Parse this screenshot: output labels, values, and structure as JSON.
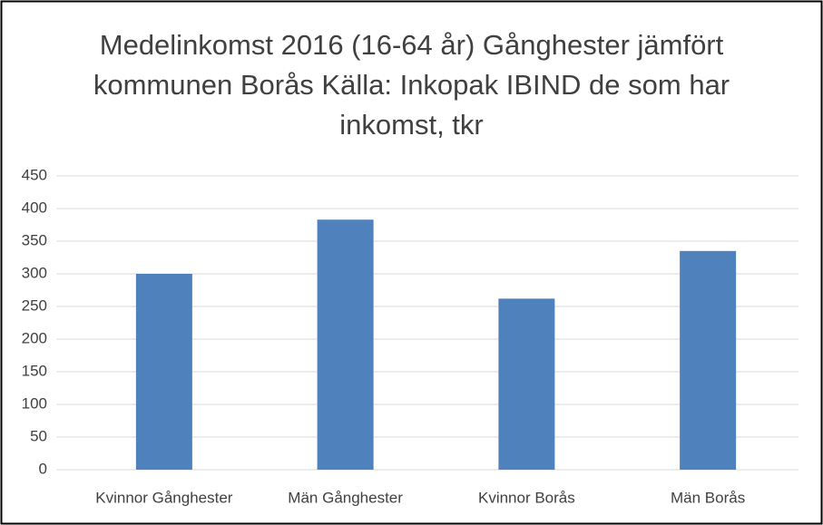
{
  "chart_data": {
    "type": "bar",
    "title": "Medelinkomst 2016 (16-64 år) Gånghester jämfört kommunen Borås Källa: Inkopak IBIND de som har inkomst, tkr",
    "categories": [
      "Kvinnor Gånghester",
      "Män Gånghester",
      "Kvinnor Borås",
      "Män Borås"
    ],
    "values": [
      300,
      383,
      262,
      335
    ],
    "color": "#4f81bd",
    "ylim": [
      0,
      450
    ],
    "yticks": [
      0,
      50,
      100,
      150,
      200,
      250,
      300,
      350,
      400,
      450
    ],
    "grid": true
  }
}
